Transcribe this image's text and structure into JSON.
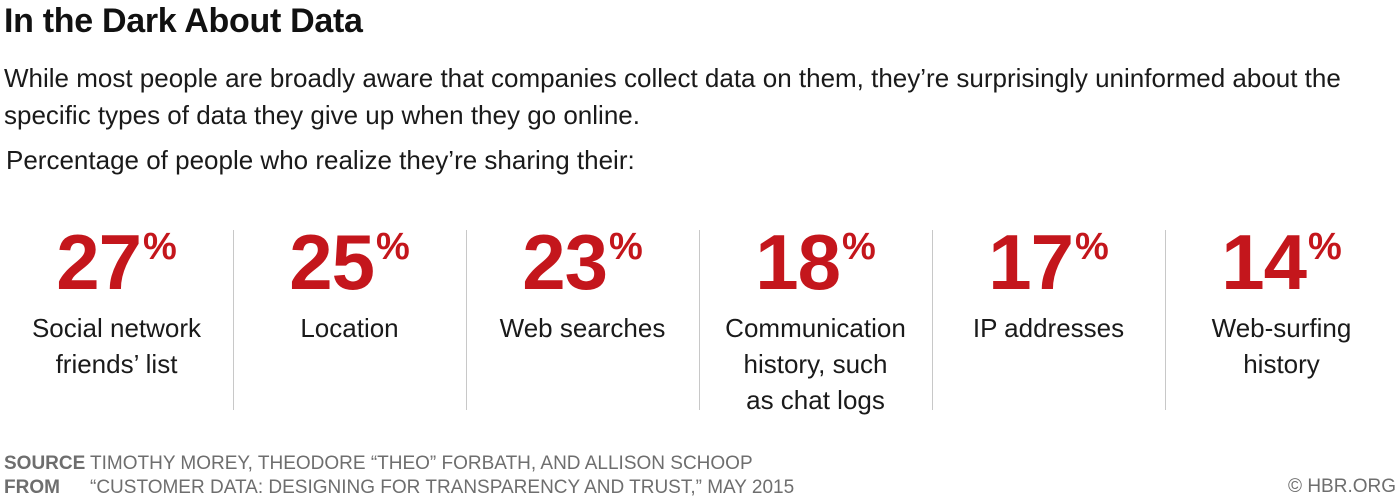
{
  "header": {
    "title": "In the Dark About Data",
    "subtitle": "While most people are broadly aware that companies collect data on them, they’re surprisingly uninformed about the specific types of data they give up when they go online.",
    "lead": "Percentage of people who realize they’re sharing their:"
  },
  "chart_data": {
    "type": "table",
    "unit": "%",
    "categories": [
      "Social network friends’ list",
      "Location",
      "Web searches",
      "Communication history, such as chat logs",
      "IP addresses",
      "Web-surfing history"
    ],
    "values": [
      27,
      25,
      23,
      18,
      17,
      14
    ],
    "label_lines": [
      [
        "Social network",
        "friends’ list"
      ],
      [
        "Location"
      ],
      [
        "Web searches"
      ],
      [
        "Communication",
        "history, such",
        "as chat logs"
      ],
      [
        "IP addresses"
      ],
      [
        "Web-surfing",
        "history"
      ]
    ],
    "value_color": "#c4161c"
  },
  "footer": {
    "source_key": "SOURCE",
    "source_text": "TIMOTHY MOREY, THEODORE “THEO” FORBATH, AND ALLISON SCHOOP",
    "from_key": "FROM",
    "from_text": "“CUSTOMER DATA: DESIGNING FOR TRANSPARENCY AND TRUST,” MAY 2015",
    "copyright": "© HBR.ORG"
  }
}
